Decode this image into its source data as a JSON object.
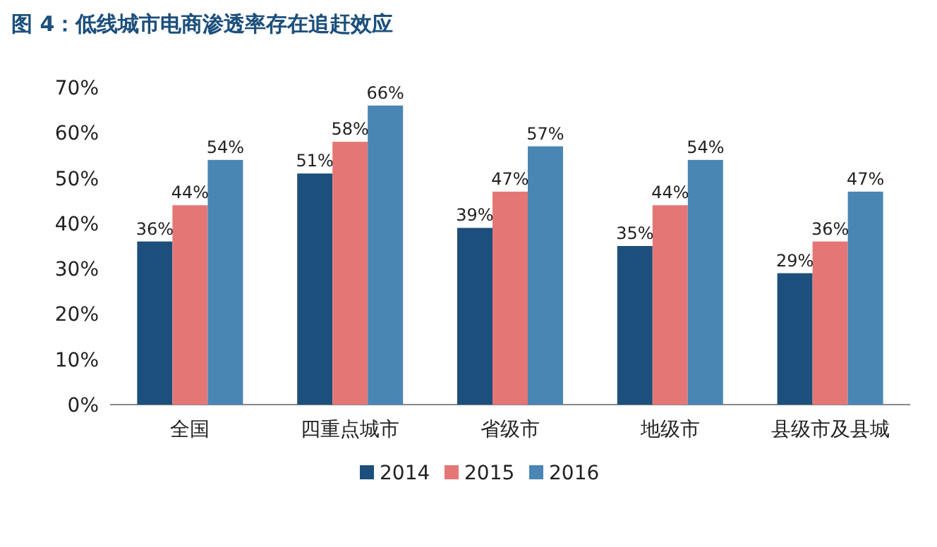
{
  "chart_data": {
    "type": "bar",
    "title": "图 4：低线城市电商渗透率存在追赶效应",
    "categories": [
      "全国",
      "四重点城市",
      "省级市",
      "地级市",
      "县级市及县城"
    ],
    "series": [
      {
        "name": "2014",
        "color": "#1c4f7c",
        "values": [
          36,
          51,
          39,
          35,
          29
        ],
        "value_labels": [
          "36%",
          "51%",
          "39%",
          "35%",
          "29%"
        ]
      },
      {
        "name": "2015",
        "color": "#e47776",
        "values": [
          44,
          58,
          47,
          44,
          36
        ],
        "value_labels": [
          "44%",
          "58%",
          "47%",
          "44%",
          "36%"
        ]
      },
      {
        "name": "2016",
        "color": "#4a86b3",
        "values": [
          54,
          66,
          57,
          54,
          47
        ],
        "value_labels": [
          "54%",
          "66%",
          "57%",
          "54%",
          "47%"
        ]
      }
    ],
    "ylim": [
      0,
      70
    ],
    "yticks": [
      {
        "value": 0,
        "label": "0%"
      },
      {
        "value": 10,
        "label": "10%"
      },
      {
        "value": 20,
        "label": "20%"
      },
      {
        "value": 30,
        "label": "30%"
      },
      {
        "value": 40,
        "label": "40%"
      },
      {
        "value": 50,
        "label": "50%"
      },
      {
        "value": 60,
        "label": "60%"
      },
      {
        "value": 70,
        "label": "70%"
      }
    ],
    "legend": "bottom"
  }
}
